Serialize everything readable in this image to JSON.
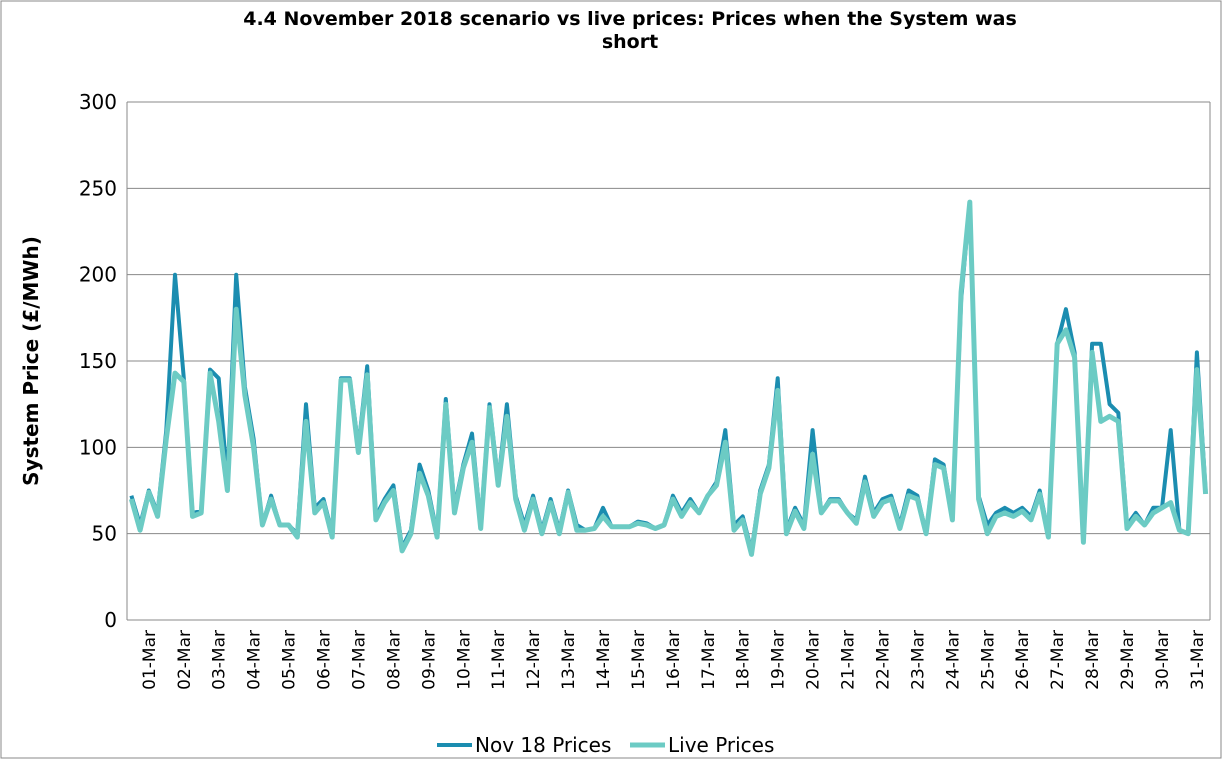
{
  "chart_data": {
    "type": "line",
    "title": "4.4 November 2018 scenario vs live prices: Prices when the System was short",
    "y_label": "System Price (£/MWh)",
    "categories": [
      null,
      null,
      "01-Mar",
      null,
      null,
      null,
      "02-Mar",
      null,
      null,
      null,
      "03-Mar",
      null,
      null,
      null,
      "04-Mar",
      null,
      null,
      null,
      "05-Mar",
      null,
      null,
      null,
      "06-Mar",
      null,
      null,
      null,
      "07-Mar",
      null,
      null,
      null,
      "08-Mar",
      null,
      null,
      null,
      "09-Mar",
      null,
      null,
      null,
      "10-Mar",
      null,
      null,
      null,
      "11-Mar",
      null,
      null,
      null,
      "12-Mar",
      null,
      null,
      null,
      "13-Mar",
      null,
      null,
      null,
      "14-Mar",
      null,
      null,
      null,
      "15-Mar",
      null,
      null,
      null,
      "16-Mar",
      null,
      null,
      null,
      "17-Mar",
      null,
      null,
      null,
      "18-Mar",
      null,
      null,
      null,
      "19-Mar",
      null,
      null,
      null,
      "20-Mar",
      null,
      null,
      null,
      "21-Mar",
      null,
      null,
      null,
      "22-Mar",
      null,
      null,
      null,
      "23-Mar",
      null,
      null,
      null,
      "24-Mar",
      null,
      null,
      null,
      "25-Mar",
      null,
      null,
      null,
      "26-Mar",
      null,
      null,
      null,
      "27-Mar",
      null,
      null,
      null,
      "28-Mar",
      null,
      null,
      null,
      "29-Mar",
      null,
      null,
      null,
      "30-Mar",
      null,
      null,
      null,
      "31-Mar",
      null
    ],
    "series": [
      {
        "name": "Nov 18 Prices",
        "color": "#1b8db0",
        "values": [
          72,
          55,
          75,
          62,
          110,
          200,
          140,
          62,
          63,
          145,
          140,
          80,
          200,
          135,
          105,
          55,
          72,
          55,
          55,
          50,
          125,
          65,
          70,
          50,
          140,
          140,
          100,
          147,
          60,
          70,
          78,
          42,
          52,
          90,
          75,
          50,
          128,
          65,
          90,
          108,
          55,
          125,
          80,
          125,
          72,
          55,
          72,
          52,
          70,
          52,
          75,
          55,
          52,
          53,
          65,
          54,
          54,
          54,
          57,
          56,
          53,
          55,
          72,
          62,
          70,
          62,
          72,
          80,
          110,
          55,
          60,
          40,
          75,
          90,
          140,
          52,
          65,
          55,
          110,
          62,
          70,
          70,
          62,
          58,
          83,
          62,
          70,
          72,
          55,
          75,
          72,
          50,
          93,
          90,
          60,
          185,
          242,
          72,
          55,
          62,
          65,
          62,
          65,
          60,
          75,
          50,
          160,
          180,
          155,
          45,
          160,
          160,
          125,
          120,
          55,
          62,
          55,
          65,
          65,
          110,
          52,
          50,
          155,
          75
        ]
      },
      {
        "name": "Live Prices",
        "color": "#6ccbc4",
        "values": [
          70,
          52,
          74,
          60,
          105,
          143,
          138,
          60,
          62,
          143,
          115,
          75,
          180,
          130,
          100,
          55,
          70,
          55,
          55,
          48,
          115,
          62,
          68,
          48,
          139,
          139,
          97,
          142,
          58,
          68,
          75,
          40,
          50,
          85,
          72,
          48,
          125,
          62,
          88,
          103,
          53,
          123,
          78,
          118,
          70,
          52,
          70,
          50,
          68,
          50,
          74,
          52,
          52,
          53,
          60,
          54,
          54,
          54,
          56,
          55,
          53,
          55,
          70,
          60,
          68,
          62,
          72,
          78,
          103,
          52,
          58,
          38,
          73,
          88,
          133,
          50,
          63,
          53,
          96,
          62,
          69,
          69,
          62,
          56,
          80,
          60,
          68,
          70,
          53,
          72,
          70,
          50,
          90,
          88,
          58,
          190,
          242,
          70,
          50,
          60,
          62,
          60,
          63,
          58,
          73,
          48,
          160,
          168,
          152,
          45,
          155,
          115,
          118,
          115,
          53,
          60,
          55,
          62,
          65,
          68,
          52,
          50,
          145,
          73
        ]
      }
    ],
    "ylim": [
      0,
      300
    ],
    "yticks": [
      0,
      50,
      100,
      150,
      200,
      250,
      300
    ],
    "grid": true,
    "legend": "bottom"
  }
}
